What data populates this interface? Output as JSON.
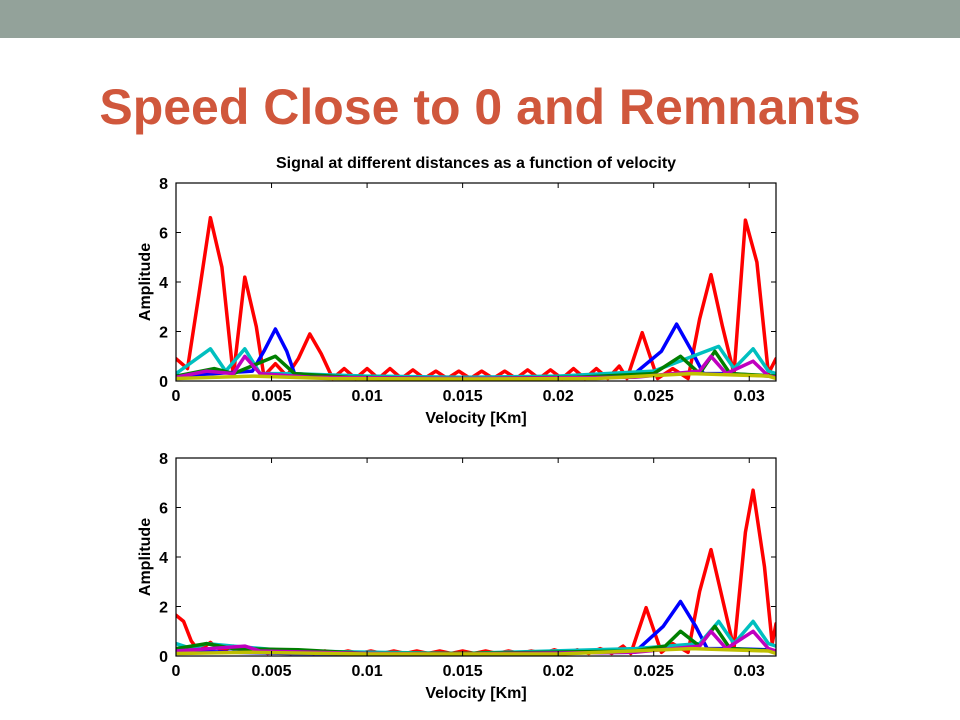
{
  "slide": {
    "title": "Speed Close to 0 and Remnants",
    "band_color": "#93a29a",
    "title_color": "#d0573c"
  },
  "chart_data": [
    {
      "type": "line",
      "title": "Signal at different distances as a function of velocity",
      "xlabel": "Velocity [Km]",
      "ylabel": "Amplitude",
      "xlim": [
        0,
        0.0314
      ],
      "ylim": [
        0,
        8
      ],
      "xticks": [
        "0",
        "0.005",
        "0.01",
        "0.015",
        "0.02",
        "0.025",
        "0.03"
      ],
      "yticks": [
        "0",
        "2",
        "4",
        "6",
        "8"
      ],
      "grid": false,
      "legend": "none",
      "series": [
        {
          "color": "#ff0000",
          "points": [
            [
              0,
              0.9
            ],
            [
              0.0006,
              0.5
            ],
            [
              0.0012,
              3.5
            ],
            [
              0.0018,
              6.6
            ],
            [
              0.0024,
              4.6
            ],
            [
              0.003,
              0.2
            ],
            [
              0.0036,
              4.2
            ],
            [
              0.0042,
              2.2
            ],
            [
              0.0046,
              0.2
            ],
            [
              0.0052,
              0.7
            ],
            [
              0.0058,
              0.2
            ],
            [
              0.0064,
              0.9
            ],
            [
              0.007,
              1.9
            ],
            [
              0.0076,
              1.1
            ],
            [
              0.0082,
              0.1
            ],
            [
              0.0088,
              0.5
            ],
            [
              0.0094,
              0.1
            ],
            [
              0.01,
              0.5
            ],
            [
              0.0106,
              0.1
            ],
            [
              0.0112,
              0.5
            ],
            [
              0.0118,
              0.1
            ],
            [
              0.0124,
              0.45
            ],
            [
              0.013,
              0.1
            ],
            [
              0.0136,
              0.4
            ],
            [
              0.0142,
              0.1
            ],
            [
              0.0148,
              0.4
            ],
            [
              0.0154,
              0.1
            ],
            [
              0.016,
              0.4
            ],
            [
              0.0166,
              0.1
            ],
            [
              0.0172,
              0.4
            ],
            [
              0.0178,
              0.1
            ],
            [
              0.0184,
              0.45
            ],
            [
              0.019,
              0.1
            ],
            [
              0.0196,
              0.45
            ],
            [
              0.0202,
              0.1
            ],
            [
              0.0208,
              0.5
            ],
            [
              0.0214,
              0.1
            ],
            [
              0.022,
              0.5
            ],
            [
              0.0226,
              0.1
            ],
            [
              0.0232,
              0.6
            ],
            [
              0.0236,
              0.1
            ],
            [
              0.0244,
              1.95
            ],
            [
              0.0252,
              0.1
            ],
            [
              0.026,
              0.5
            ],
            [
              0.0268,
              0.1
            ],
            [
              0.0274,
              2.5
            ],
            [
              0.028,
              4.3
            ],
            [
              0.0286,
              2.2
            ],
            [
              0.0292,
              0.3
            ],
            [
              0.0298,
              6.5
            ],
            [
              0.0304,
              4.8
            ],
            [
              0.031,
              0.3
            ],
            [
              0.0314,
              0.9
            ]
          ]
        },
        {
          "color": "#0000ff",
          "points": [
            [
              0,
              0.2
            ],
            [
              0.002,
              0.3
            ],
            [
              0.004,
              0.4
            ],
            [
              0.0046,
              1.2
            ],
            [
              0.0052,
              2.1
            ],
            [
              0.0058,
              1.2
            ],
            [
              0.0062,
              0.3
            ],
            [
              0.008,
              0.2
            ],
            [
              0.012,
              0.15
            ],
            [
              0.016,
              0.15
            ],
            [
              0.02,
              0.15
            ],
            [
              0.024,
              0.3
            ],
            [
              0.0254,
              1.2
            ],
            [
              0.0262,
              2.3
            ],
            [
              0.027,
              1.2
            ],
            [
              0.0276,
              0.3
            ],
            [
              0.029,
              0.3
            ],
            [
              0.031,
              0.2
            ],
            [
              0.0314,
              0.2
            ]
          ]
        },
        {
          "color": "#00bfbf",
          "points": [
            [
              0,
              0.3
            ],
            [
              0.0018,
              1.3
            ],
            [
              0.0026,
              0.4
            ],
            [
              0.0036,
              1.3
            ],
            [
              0.0044,
              0.3
            ],
            [
              0.006,
              0.3
            ],
            [
              0.01,
              0.2
            ],
            [
              0.015,
              0.15
            ],
            [
              0.02,
              0.2
            ],
            [
              0.025,
              0.4
            ],
            [
              0.0284,
              1.4
            ],
            [
              0.0292,
              0.5
            ],
            [
              0.0302,
              1.3
            ],
            [
              0.031,
              0.4
            ],
            [
              0.0314,
              0.3
            ]
          ]
        },
        {
          "color": "#007f00",
          "points": [
            [
              0,
              0.2
            ],
            [
              0.002,
              0.5
            ],
            [
              0.003,
              0.3
            ],
            [
              0.0052,
              1.0
            ],
            [
              0.0062,
              0.3
            ],
            [
              0.009,
              0.15
            ],
            [
              0.015,
              0.1
            ],
            [
              0.021,
              0.15
            ],
            [
              0.025,
              0.3
            ],
            [
              0.0264,
              1.0
            ],
            [
              0.0274,
              0.3
            ],
            [
              0.0282,
              1.2
            ],
            [
              0.029,
              0.3
            ],
            [
              0.0314,
              0.2
            ]
          ]
        },
        {
          "color": "#bf00bf",
          "points": [
            [
              0,
              0.15
            ],
            [
              0.0016,
              0.4
            ],
            [
              0.003,
              0.3
            ],
            [
              0.0036,
              1.0
            ],
            [
              0.0044,
              0.3
            ],
            [
              0.007,
              0.15
            ],
            [
              0.015,
              0.1
            ],
            [
              0.024,
              0.15
            ],
            [
              0.0274,
              0.4
            ],
            [
              0.028,
              1.0
            ],
            [
              0.0288,
              0.3
            ],
            [
              0.0302,
              0.8
            ],
            [
              0.031,
              0.2
            ],
            [
              0.0314,
              0.15
            ]
          ]
        },
        {
          "color": "#bfbf00",
          "points": [
            [
              0,
              0.1
            ],
            [
              0.004,
              0.2
            ],
            [
              0.008,
              0.1
            ],
            [
              0.015,
              0.08
            ],
            [
              0.022,
              0.1
            ],
            [
              0.027,
              0.3
            ],
            [
              0.031,
              0.2
            ],
            [
              0.0314,
              0.1
            ]
          ]
        }
      ]
    },
    {
      "type": "line",
      "title": "",
      "xlabel": "Velocity [Km]",
      "ylabel": "Amplitude",
      "xlim": [
        0,
        0.0314
      ],
      "ylim": [
        0,
        8
      ],
      "xticks": [
        "0",
        "0.005",
        "0.01",
        "0.015",
        "0.02",
        "0.025",
        "0.03"
      ],
      "yticks": [
        "0",
        "2",
        "4",
        "6",
        "8"
      ],
      "grid": false,
      "legend": "none",
      "series": [
        {
          "color": "#ff0000",
          "points": [
            [
              0,
              1.65
            ],
            [
              0.0004,
              1.4
            ],
            [
              0.0008,
              0.6
            ],
            [
              0.0012,
              0.2
            ],
            [
              0.0018,
              0.55
            ],
            [
              0.0024,
              0.2
            ],
            [
              0.003,
              0.4
            ],
            [
              0.0036,
              0.15
            ],
            [
              0.0042,
              0.3
            ],
            [
              0.0048,
              0.1
            ],
            [
              0.0054,
              0.25
            ],
            [
              0.006,
              0.1
            ],
            [
              0.0066,
              0.2
            ],
            [
              0.0072,
              0.1
            ],
            [
              0.0078,
              0.2
            ],
            [
              0.0084,
              0.1
            ],
            [
              0.009,
              0.2
            ],
            [
              0.0096,
              0.1
            ],
            [
              0.0102,
              0.2
            ],
            [
              0.0108,
              0.1
            ],
            [
              0.0114,
              0.2
            ],
            [
              0.012,
              0.1
            ],
            [
              0.0126,
              0.2
            ],
            [
              0.0132,
              0.1
            ],
            [
              0.0138,
              0.2
            ],
            [
              0.0144,
              0.1
            ],
            [
              0.015,
              0.2
            ],
            [
              0.0156,
              0.1
            ],
            [
              0.0162,
              0.2
            ],
            [
              0.0168,
              0.1
            ],
            [
              0.0174,
              0.2
            ],
            [
              0.018,
              0.1
            ],
            [
              0.0186,
              0.2
            ],
            [
              0.0192,
              0.1
            ],
            [
              0.0198,
              0.25
            ],
            [
              0.0204,
              0.1
            ],
            [
              0.021,
              0.25
            ],
            [
              0.0216,
              0.1
            ],
            [
              0.0222,
              0.3
            ],
            [
              0.0228,
              0.1
            ],
            [
              0.0234,
              0.4
            ],
            [
              0.0238,
              0.1
            ],
            [
              0.0246,
              1.95
            ],
            [
              0.0254,
              0.15
            ],
            [
              0.026,
              0.5
            ],
            [
              0.0268,
              0.15
            ],
            [
              0.0274,
              2.6
            ],
            [
              0.028,
              4.3
            ],
            [
              0.0286,
              2.3
            ],
            [
              0.0292,
              0.3
            ],
            [
              0.0298,
              5.0
            ],
            [
              0.0302,
              6.7
            ],
            [
              0.0308,
              3.6
            ],
            [
              0.0312,
              0.5
            ],
            [
              0.0314,
              1.3
            ]
          ]
        },
        {
          "color": "#0000ff",
          "points": [
            [
              0,
              0.2
            ],
            [
              0.006,
              0.1
            ],
            [
              0.015,
              0.08
            ],
            [
              0.024,
              0.15
            ],
            [
              0.0255,
              1.2
            ],
            [
              0.0264,
              2.2
            ],
            [
              0.0272,
              1.2
            ],
            [
              0.0278,
              0.3
            ],
            [
              0.029,
              0.3
            ],
            [
              0.031,
              0.25
            ],
            [
              0.0314,
              0.2
            ]
          ]
        },
        {
          "color": "#00bfbf",
          "points": [
            [
              0,
              0.5
            ],
            [
              0.0008,
              0.3
            ],
            [
              0.0016,
              0.5
            ],
            [
              0.003,
              0.4
            ],
            [
              0.006,
              0.2
            ],
            [
              0.015,
              0.1
            ],
            [
              0.024,
              0.3
            ],
            [
              0.0274,
              0.5
            ],
            [
              0.0284,
              1.4
            ],
            [
              0.0292,
              0.5
            ],
            [
              0.0302,
              1.4
            ],
            [
              0.031,
              0.5
            ],
            [
              0.0314,
              0.4
            ]
          ]
        },
        {
          "color": "#007f00",
          "points": [
            [
              0,
              0.3
            ],
            [
              0.0016,
              0.5
            ],
            [
              0.003,
              0.3
            ],
            [
              0.0064,
              0.25
            ],
            [
              0.01,
              0.1
            ],
            [
              0.015,
              0.1
            ],
            [
              0.024,
              0.2
            ],
            [
              0.0256,
              0.4
            ],
            [
              0.0264,
              1.0
            ],
            [
              0.0274,
              0.4
            ],
            [
              0.0282,
              1.2
            ],
            [
              0.029,
              0.3
            ],
            [
              0.0314,
              0.2
            ]
          ]
        },
        {
          "color": "#bf00bf",
          "points": [
            [
              0,
              0.2
            ],
            [
              0.0036,
              0.4
            ],
            [
              0.0044,
              0.2
            ],
            [
              0.01,
              0.1
            ],
            [
              0.015,
              0.08
            ],
            [
              0.024,
              0.15
            ],
            [
              0.0274,
              0.4
            ],
            [
              0.028,
              1.0
            ],
            [
              0.0288,
              0.3
            ],
            [
              0.0302,
              1.0
            ],
            [
              0.031,
              0.3
            ],
            [
              0.0314,
              0.2
            ]
          ]
        },
        {
          "color": "#bfbf00",
          "points": [
            [
              0,
              0.1
            ],
            [
              0.004,
              0.15
            ],
            [
              0.01,
              0.08
            ],
            [
              0.02,
              0.08
            ],
            [
              0.027,
              0.3
            ],
            [
              0.031,
              0.2
            ],
            [
              0.0314,
              0.1
            ]
          ]
        }
      ]
    }
  ]
}
